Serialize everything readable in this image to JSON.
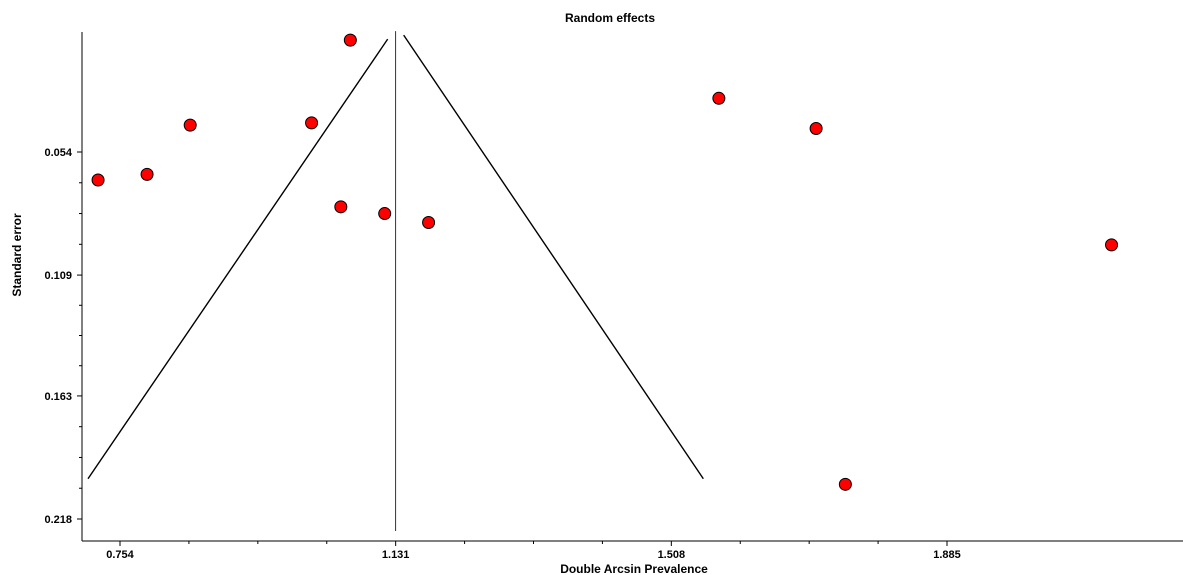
{
  "chart_data": {
    "type": "scatter",
    "title": "Random effects",
    "xlabel": "Double Arcsin Prevalence",
    "ylabel": "Standard error",
    "x_ticks": [
      "0.754",
      "1.131",
      "1.508",
      "1.885"
    ],
    "x_tick_values": [
      0.754,
      1.131,
      1.508,
      1.885
    ],
    "y_ticks": [
      "0.054",
      "0.109",
      "0.163",
      "0.218"
    ],
    "y_tick_values": [
      0.054,
      0.109,
      0.163,
      0.218
    ],
    "y_reversed": true,
    "xlim": [
      0.709,
      2.11
    ],
    "ylim": [
      0.0,
      0.2225
    ],
    "pooled_estimate": 1.131,
    "funnel_base_se": 0.2,
    "funnel_apex_se": 0.0,
    "grid": false,
    "marker_color": "#ff0000",
    "points": [
      {
        "x": 0.724,
        "y": 0.0665
      },
      {
        "x": 0.791,
        "y": 0.064
      },
      {
        "x": 0.85,
        "y": 0.042
      },
      {
        "x": 1.016,
        "y": 0.041
      },
      {
        "x": 1.056,
        "y": 0.0785
      },
      {
        "x": 1.069,
        "y": 0.004
      },
      {
        "x": 1.116,
        "y": 0.0815
      },
      {
        "x": 1.176,
        "y": 0.0855
      },
      {
        "x": 1.573,
        "y": 0.03
      },
      {
        "x": 1.706,
        "y": 0.0435
      },
      {
        "x": 1.746,
        "y": 0.2025
      },
      {
        "x": 2.11,
        "y": 0.0955
      }
    ]
  }
}
